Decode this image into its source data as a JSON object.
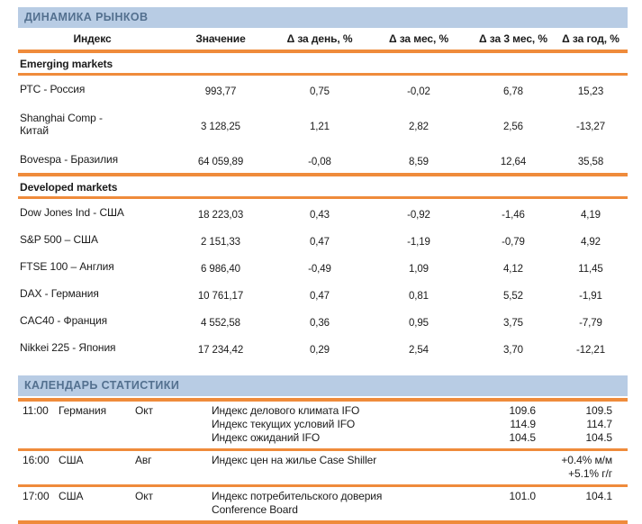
{
  "markets": {
    "title": "ДИНАМИКА РЫНКОВ",
    "columns": [
      "Индекс",
      "Значение",
      "Δ за день, %",
      "Δ за мес, %",
      "Δ за 3 мес, %",
      "Δ за год, %"
    ],
    "groups": [
      {
        "label": "Emerging markets",
        "rows": [
          {
            "index": "РТС - Россия",
            "value": "993,77",
            "d_day": "0,75",
            "d_month": "-0,02",
            "d_3m": "6,78",
            "d_year": "15,23"
          },
          {
            "index": "Shanghai Comp -\nКитай",
            "value": "3 128,25",
            "d_day": "1,21",
            "d_month": "2,82",
            "d_3m": "2,56",
            "d_year": "-13,27"
          },
          {
            "index": "Bovespa - Бразилия",
            "value": "64 059,89",
            "d_day": "-0,08",
            "d_month": "8,59",
            "d_3m": "12,64",
            "d_year": "35,58"
          }
        ]
      },
      {
        "label": "Developed markets",
        "rows": [
          {
            "index": "Dow Jones Ind - США",
            "value": "18 223,03",
            "d_day": "0,43",
            "d_month": "-0,92",
            "d_3m": "-1,46",
            "d_year": "4,19"
          },
          {
            "index": "S&P 500 – США",
            "value": "2 151,33",
            "d_day": "0,47",
            "d_month": "-1,19",
            "d_3m": "-0,79",
            "d_year": "4,92"
          },
          {
            "index": "FTSE 100  – Англия",
            "value": "6 986,40",
            "d_day": "-0,49",
            "d_month": "1,09",
            "d_3m": "4,12",
            "d_year": "11,45"
          },
          {
            "index": "DAX - Германия",
            "value": "10 761,17",
            "d_day": "0,47",
            "d_month": "0,81",
            "d_3m": "5,52",
            "d_year": "-1,91"
          },
          {
            "index": "CAC40 - Франция",
            "value": "4 552,58",
            "d_day": "0,36",
            "d_month": "0,95",
            "d_3m": "3,75",
            "d_year": "-7,79"
          },
          {
            "index": "Nikkei 225 - Япония",
            "value": "17 234,42",
            "d_day": "0,29",
            "d_month": "2,54",
            "d_3m": "3,70",
            "d_year": "-12,21"
          }
        ]
      }
    ]
  },
  "calendar": {
    "title": "КАЛЕНДАРЬ СТАТИСТИКИ",
    "events": [
      {
        "time": "11:00",
        "country": "Германия",
        "period": "Окт",
        "items": [
          {
            "name": "Индекс делового климата IFO",
            "actual": "109.6",
            "prior": "109.5"
          },
          {
            "name": "Индекс текущих условий IFO",
            "actual": "114.9",
            "prior": "114.7"
          },
          {
            "name": "Индекс ожиданий IFO",
            "actual": "104.5",
            "prior": "104.5"
          }
        ]
      },
      {
        "time": "16:00",
        "country": "США",
        "period": "Авг",
        "items": [
          {
            "name": "Индекс цен на жилье Case Shiller",
            "actual": "",
            "prior": "+0.4% м/м\n+5.1% г/г"
          }
        ]
      },
      {
        "time": "17:00",
        "country": "США",
        "period": "Окт",
        "items": [
          {
            "name": "Индекс потребительского доверия\nConference Board",
            "actual": "101.0",
            "prior": "104.1"
          }
        ]
      }
    ]
  },
  "colors": {
    "accent_orange": "#EF8B3B",
    "bar_blue": "#B8CCE4",
    "bar_text_blue": "#53708F"
  }
}
